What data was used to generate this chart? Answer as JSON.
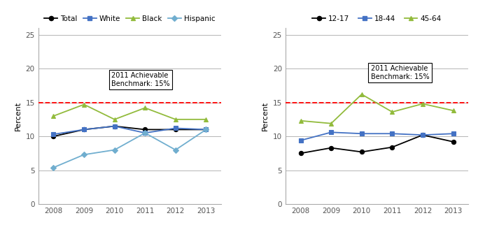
{
  "years": [
    2008,
    2009,
    2010,
    2011,
    2012,
    2013
  ],
  "chart1": {
    "Total": [
      10.0,
      11.0,
      11.5,
      11.0,
      11.0,
      11.0
    ],
    "White": [
      10.3,
      11.0,
      11.5,
      10.5,
      11.2,
      11.0
    ],
    "Black": [
      13.0,
      14.7,
      12.5,
      14.2,
      12.5,
      12.5
    ],
    "Hispanic": [
      5.4,
      7.3,
      8.0,
      10.5,
      8.0,
      11.0
    ]
  },
  "chart2": {
    "12-17": [
      7.5,
      8.3,
      7.7,
      8.4,
      10.2,
      9.2
    ],
    "18-44": [
      9.4,
      10.6,
      10.4,
      10.4,
      10.2,
      10.4
    ],
    "45-64": [
      12.3,
      11.9,
      16.2,
      13.6,
      14.8,
      13.8
    ]
  },
  "benchmark": 15,
  "benchmark_label": "2011 Achievable\nBenchmark: 15%",
  "colors": {
    "Total": "#000000",
    "White": "#4472C4",
    "Black": "#92BB3C",
    "Hispanic": "#70AECF",
    "12-17": "#000000",
    "18-44": "#4472C4",
    "45-64": "#92BB3C"
  },
  "markers": {
    "Total": "o",
    "White": "s",
    "Black": "^",
    "Hispanic": "D",
    "12-17": "o",
    "18-44": "s",
    "45-64": "^"
  },
  "ylim": [
    0,
    26
  ],
  "yticks": [
    0,
    5,
    10,
    15,
    20,
    25
  ],
  "ylabel": "Percent",
  "background_color": "#ffffff",
  "grid_color": "#aaaaaa"
}
